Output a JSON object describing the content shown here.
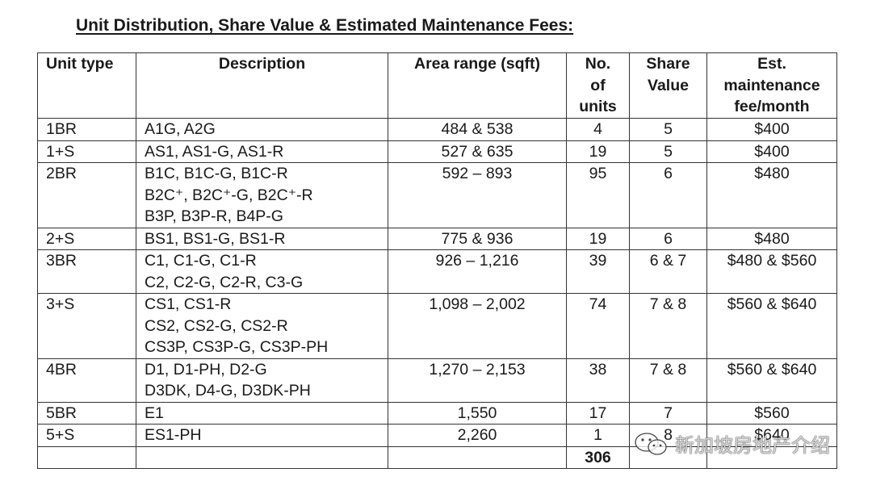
{
  "title": "Unit Distribution, Share Value & Estimated Maintenance Fees:",
  "headers": {
    "unit_type": [
      "Unit type"
    ],
    "description": [
      "Description"
    ],
    "area": [
      "Area range (sqft)"
    ],
    "units": [
      "No.",
      "of",
      "units"
    ],
    "share": [
      "Share",
      "Value"
    ],
    "fee": [
      "Est.",
      "maintenance",
      "fee/month"
    ]
  },
  "rows": [
    {
      "type": "1BR",
      "desc": [
        "A1G, A2G"
      ],
      "area": "484 & 538",
      "units": "4",
      "share": "5",
      "fee": "$400"
    },
    {
      "type": "1+S",
      "desc": [
        "AS1, AS1-G, AS1-R"
      ],
      "area": "527 & 635",
      "units": "19",
      "share": "5",
      "fee": "$400"
    },
    {
      "type": "2BR",
      "desc": [
        "B1C, B1C-G, B1C-R",
        "B2C⁺, B2C⁺-G, B2C⁺-R",
        "B3P, B3P-R, B4P-G"
      ],
      "area": "592 – 893",
      "units": "95",
      "share": "6",
      "fee": "$480"
    },
    {
      "type": "2+S",
      "desc": [
        "BS1, BS1-G, BS1-R"
      ],
      "area": "775 & 936",
      "units": "19",
      "share": "6",
      "fee": "$480"
    },
    {
      "type": "3BR",
      "desc": [
        "C1, C1-G, C1-R",
        "C2, C2-G, C2-R, C3-G"
      ],
      "area": "926 – 1,216",
      "units": "39",
      "share": "6 & 7",
      "fee": "$480 & $560"
    },
    {
      "type": "3+S",
      "desc": [
        "CS1, CS1-R",
        "CS2, CS2-G, CS2-R",
        "CS3P, CS3P-G, CS3P-PH"
      ],
      "area": "1,098 – 2,002",
      "units": "74",
      "share": "7 & 8",
      "fee": "$560 & $640"
    },
    {
      "type": "4BR",
      "desc": [
        "D1, D1-PH, D2-G",
        "D3DK, D4-G, D3DK-PH"
      ],
      "area": "1,270 – 2,153",
      "units": "38",
      "share": "7 & 8",
      "fee": "$560 & $640"
    },
    {
      "type": "5BR",
      "desc": [
        "E1"
      ],
      "area": "1,550",
      "units": "17",
      "share": "7",
      "fee": "$560"
    },
    {
      "type": "5+S",
      "desc": [
        "ES1-PH"
      ],
      "area": "2,260",
      "units": "1",
      "share": "8",
      "fee": "$640"
    }
  ],
  "total_units": "306",
  "watermark": {
    "text": "新加坡房地产介绍",
    "icon": "wechat-icon"
  }
}
